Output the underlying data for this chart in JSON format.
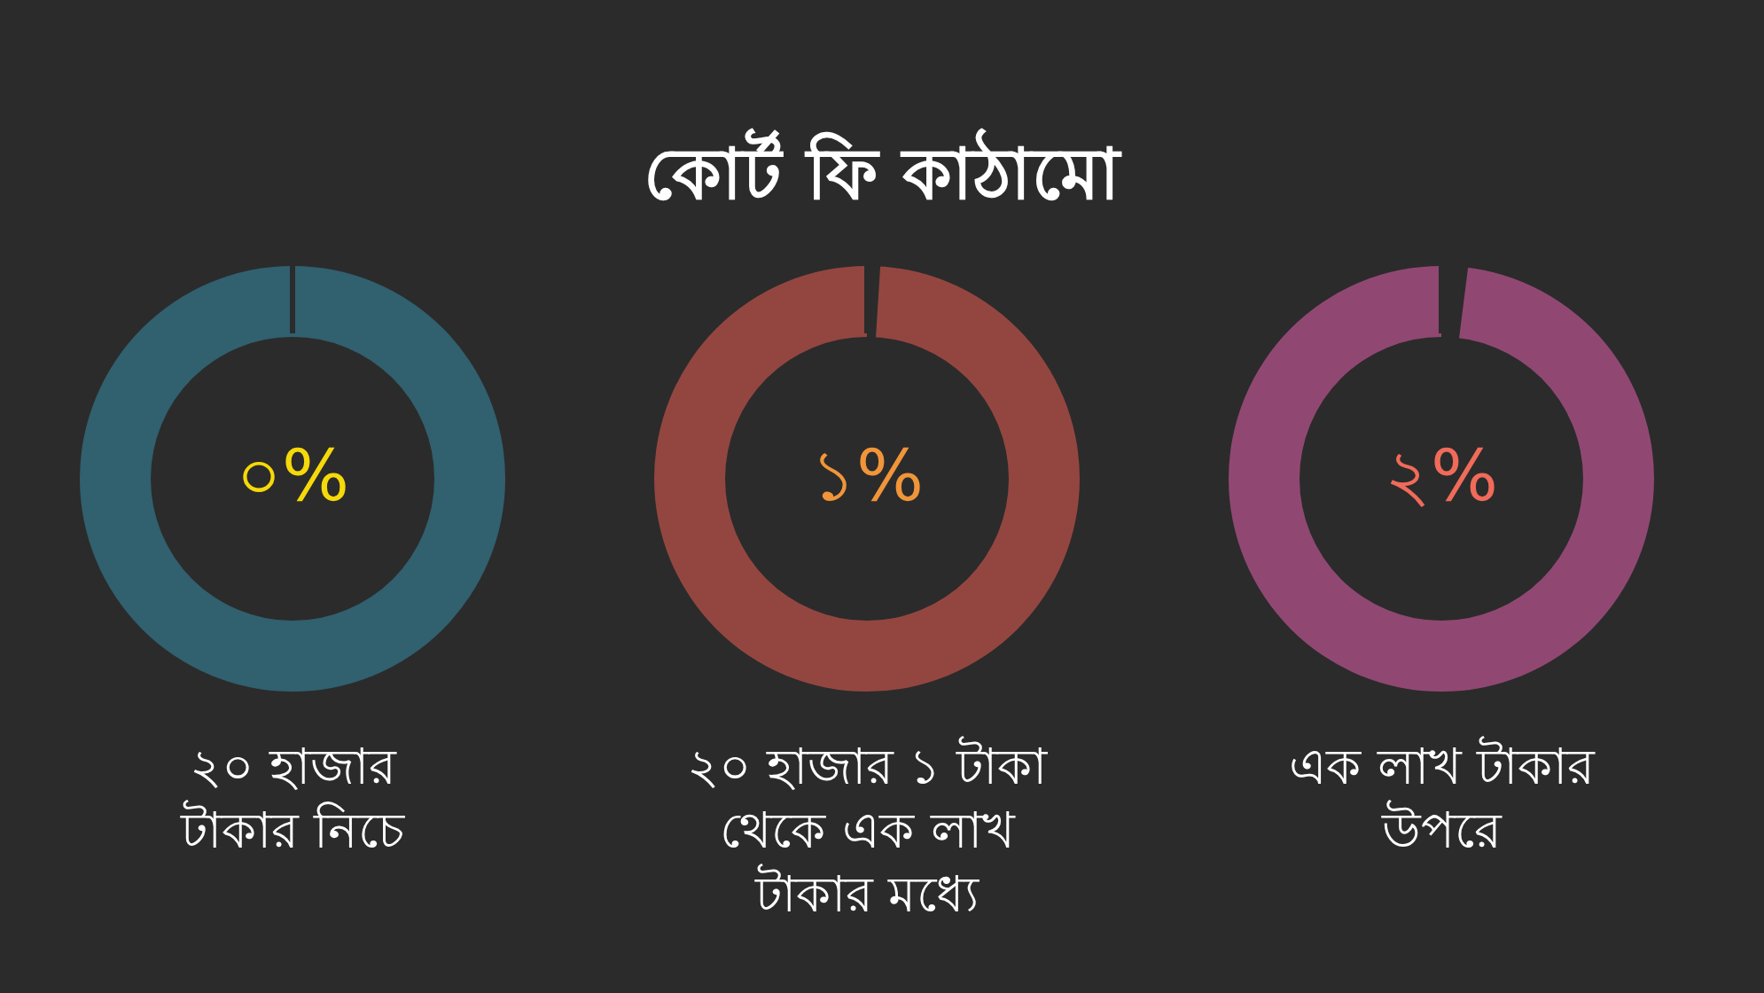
{
  "chart_data": {
    "type": "other",
    "title": "কোর্ট ফি কাঠামো",
    "categories": [
      "২০ হাজার\nটাকার নিচে",
      "২০ হাজার ১ টাকা\nথেকে এক লাখ\nটাকার মধ্যে",
      "এক লাখ টাকার\nউপরে"
    ],
    "values": [
      0,
      1,
      2
    ],
    "value_labels": [
      "০%",
      "১%",
      "২%"
    ],
    "colors": [
      "#31606f",
      "#934640",
      "#904872"
    ]
  }
}
